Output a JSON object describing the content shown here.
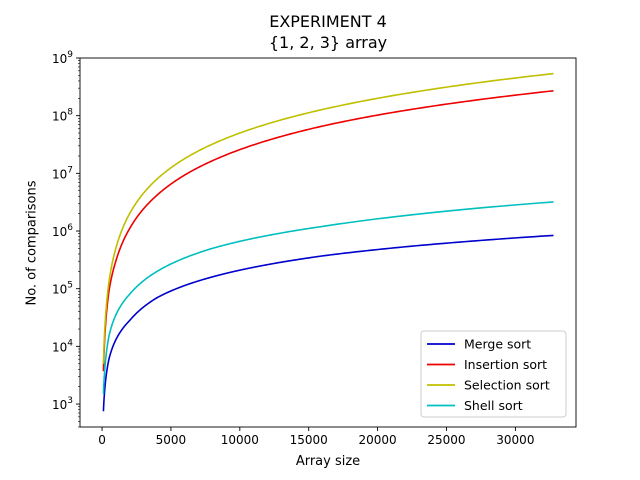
{
  "chart_data": {
    "type": "line",
    "title": "EXPERIMENT 4",
    "subtitle": "{1, 2, 3} array",
    "xlabel": "Array size",
    "ylabel": "No. of comparisons",
    "x_scale": "linear",
    "y_scale": "log",
    "xlim": [
      -1600,
      34400
    ],
    "ylim": [
      400,
      1000000000
    ],
    "x_ticks": [
      0,
      5000,
      10000,
      15000,
      20000,
      25000,
      30000
    ],
    "x_tick_labels": [
      "0",
      "5000",
      "10000",
      "15000",
      "20000",
      "25000",
      "30000"
    ],
    "y_ticks": [
      1000,
      10000,
      100000,
      1000000,
      10000000,
      100000000,
      1000000000
    ],
    "y_tick_labels": [
      {
        "base": "10",
        "exp": "3"
      },
      {
        "base": "10",
        "exp": "4"
      },
      {
        "base": "10",
        "exp": "5"
      },
      {
        "base": "10",
        "exp": "6"
      },
      {
        "base": "10",
        "exp": "7"
      },
      {
        "base": "10",
        "exp": "8"
      },
      {
        "base": "10",
        "exp": "9"
      }
    ],
    "grid": false,
    "legend_position": "lower-right",
    "x": [
      100,
      500,
      1000,
      2000,
      4000,
      8000,
      16000,
      32768
    ],
    "series": [
      {
        "name": "Merge sort",
        "color": "#0000cc",
        "values": [
          750,
          6000,
          13000,
          28000,
          70000,
          160000,
          370000,
          840000
        ]
      },
      {
        "name": "Insertion sort",
        "color": "#ee0000",
        "values": [
          3700,
          90000,
          300000,
          1100000,
          4200000,
          16500000,
          66000000,
          270000000
        ]
      },
      {
        "name": "Selection sort",
        "color": "#bfbf00",
        "values": [
          5000,
          130000,
          500000,
          2000000,
          8000000,
          32000000,
          128000000,
          537000000
        ]
      },
      {
        "name": "Shell sort",
        "color": "#00bfbf",
        "values": [
          1500,
          15000,
          35000,
          80000,
          200000,
          500000,
          1200000,
          3200000
        ]
      }
    ]
  }
}
